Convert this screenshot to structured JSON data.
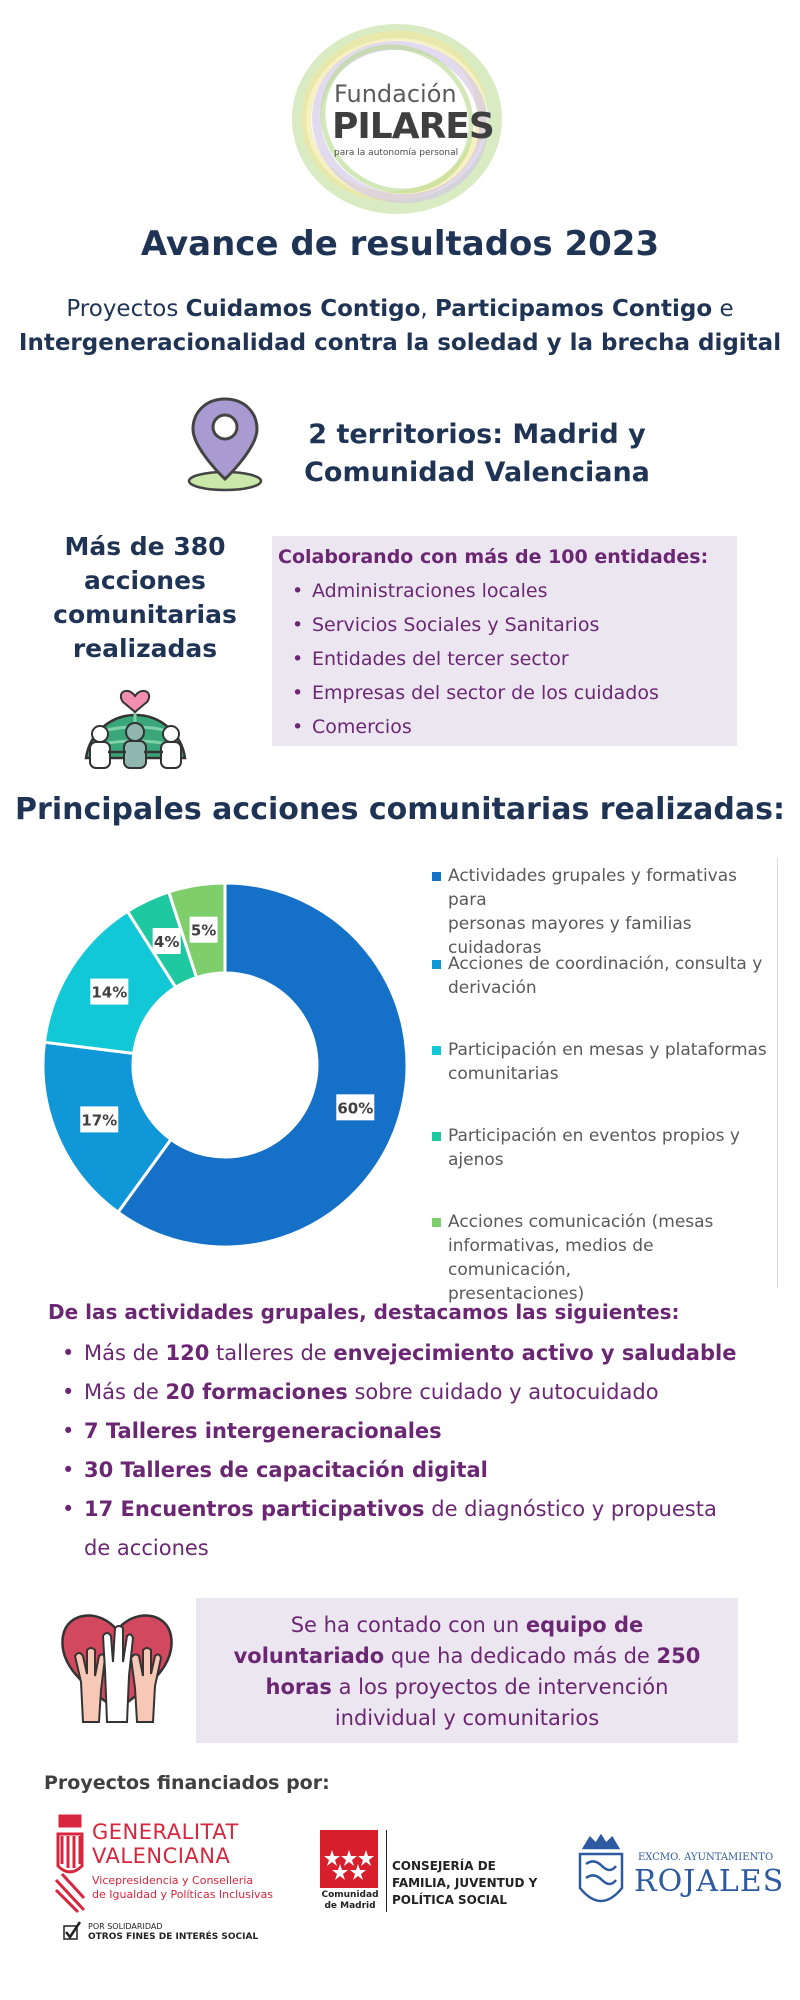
{
  "logo": {
    "line1": "Fundación",
    "line2": "PILARES",
    "line3": "para la autonomía personal"
  },
  "title": "Avance de resultados 2023",
  "subtitle": {
    "prefix": "Proyectos ",
    "p1": "Cuidamos Contigo",
    "sep1": ", ",
    "p2": "Participamos Contigo",
    "sep2": " e",
    "p3": "Intergeneracionalidad contra la soledad y la brecha digital"
  },
  "territories": {
    "line1": "2 territorios: Madrid y",
    "line2": "Comunidad Valenciana"
  },
  "acciones": {
    "line1": "Más de 380",
    "line2": "acciones",
    "line3": "comunitarias",
    "line4": "realizadas"
  },
  "entidades": {
    "title": "Colaborando con más de 100 entidades:",
    "items": [
      "Administraciones locales",
      "Servicios Sociales y Sanitarios",
      "Entidades del tercer sector",
      "Empresas del sector de los cuidados",
      "Comercios"
    ]
  },
  "principales_title": "Principales acciones comunitarias realizadas:",
  "chart_data": {
    "type": "pie",
    "donut": true,
    "categories": [
      "Actividades grupales y formativas para personas mayores y familias cuidadoras",
      "Acciones de coordinación, consulta y derivación",
      "Participación en mesas y plataformas comunitarias",
      "Participación en eventos propios y ajenos",
      "Acciones comunicación (mesas informativas, medios de comunicación, presentaciones)"
    ],
    "values": [
      60,
      17,
      14,
      4,
      5
    ],
    "labels": [
      "60%",
      "17%",
      "14%",
      "4%",
      "5%"
    ],
    "colors": [
      "#1571c7",
      "#0f97d8",
      "#12c8d6",
      "#1ec9a2",
      "#7ecf6b"
    ],
    "legend_lines": [
      [
        "Actividades grupales y formativas para",
        "personas mayores y familias",
        "cuidadoras"
      ],
      [
        "Acciones de coordinación, consulta y",
        "derivación"
      ],
      [
        "Participación en mesas y plataformas",
        "comunitarias"
      ],
      [
        "Participación en eventos propios y",
        "ajenos"
      ],
      [
        "Acciones comunicación (mesas",
        "informativas, medios de comunicación,",
        "presentaciones)"
      ]
    ],
    "legend_position": "right"
  },
  "destacamos": {
    "title": "De las actividades grupales, destacamos las siguientes:",
    "items": [
      {
        "a": "Más de ",
        "b": "120",
        "c": " talleres de ",
        "d": "envejecimiento activo y saludable",
        "e": ""
      },
      {
        "a": "Más de ",
        "b": "20 formaciones",
        "c": " sobre cuidado y autocuidado",
        "d": "",
        "e": ""
      },
      {
        "a": "",
        "b": "7 Talleres intergeneracionales",
        "c": "",
        "d": "",
        "e": ""
      },
      {
        "a": "",
        "b": "30 Talleres de capacitación digital",
        "c": "",
        "d": "",
        "e": ""
      },
      {
        "a": "",
        "b": "17 Encuentros participativos",
        "c": " de diagnóstico y propuesta de acciones",
        "d": "",
        "e": ""
      }
    ]
  },
  "voluntariado": {
    "t1": "Se ha contado con un ",
    "b1": "equipo de voluntariado",
    "t2": " que ha dedicado más de ",
    "b2": "250 horas",
    "t3": " a los proyectos de intervención individual y comunitarios"
  },
  "financiados": "Proyectos financiados por:",
  "gva": {
    "name1": "GENERALITAT",
    "name2": "VALENCIANA",
    "sub1": "Vicepresidencia y Conselleria",
    "sub2": "de Igualdad y Políticas Inclusivas",
    "solid1": "POR SOLIDARIDAD",
    "solid2": "OTROS FINES DE INTERÉS SOCIAL"
  },
  "cam": {
    "sub1": "Comunidad",
    "sub2": "de Madrid",
    "line1": "CONSEJERÍA DE",
    "line2": "FAMILIA, JUVENTUD Y",
    "line3": "POLÍTICA SOCIAL"
  },
  "rojales": {
    "small": "EXCMO. AYUNTAMIENTO",
    "big": "ROJALES"
  }
}
